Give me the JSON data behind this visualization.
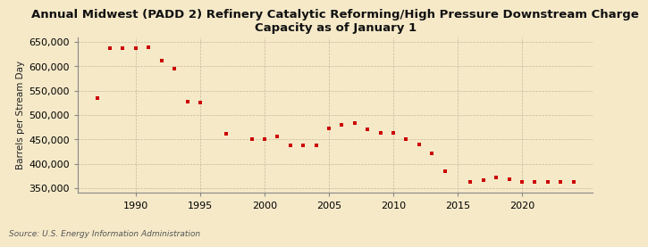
{
  "title": "Annual Midwest (PADD 2) Refinery Catalytic Reforming/High Pressure Downstream Charge\nCapacity as of January 1",
  "ylabel": "Barrels per Stream Day",
  "source": "Source: U.S. Energy Information Administration",
  "background_color": "#f5e9c8",
  "marker_color": "#cc0000",
  "years": [
    1987,
    1988,
    1989,
    1990,
    1991,
    1992,
    1993,
    1994,
    1995,
    1997,
    1999,
    2000,
    2001,
    2002,
    2003,
    2004,
    2005,
    2006,
    2007,
    2008,
    2009,
    2010,
    2011,
    2012,
    2013,
    2014,
    2016,
    2017,
    2018,
    2019,
    2020,
    2021,
    2022,
    2023,
    2024
  ],
  "values": [
    535000,
    638000,
    637000,
    638000,
    640000,
    611000,
    596000,
    527000,
    526000,
    462000,
    450000,
    450000,
    456000,
    438000,
    437000,
    438000,
    473000,
    480000,
    483000,
    470000,
    464000,
    464000,
    450000,
    439000,
    421000,
    385000,
    362000,
    367000,
    372000,
    368000,
    362000,
    362000,
    363000,
    363000,
    363000
  ],
  "ylim": [
    340000,
    660000
  ],
  "yticks": [
    350000,
    400000,
    450000,
    500000,
    550000,
    600000,
    650000
  ],
  "xlim": [
    1985.5,
    2025.5
  ],
  "xticks": [
    1990,
    1995,
    2000,
    2005,
    2010,
    2015,
    2020
  ],
  "title_fontsize": 9.5,
  "ylabel_fontsize": 7.5,
  "tick_fontsize": 8,
  "source_fontsize": 6.5
}
